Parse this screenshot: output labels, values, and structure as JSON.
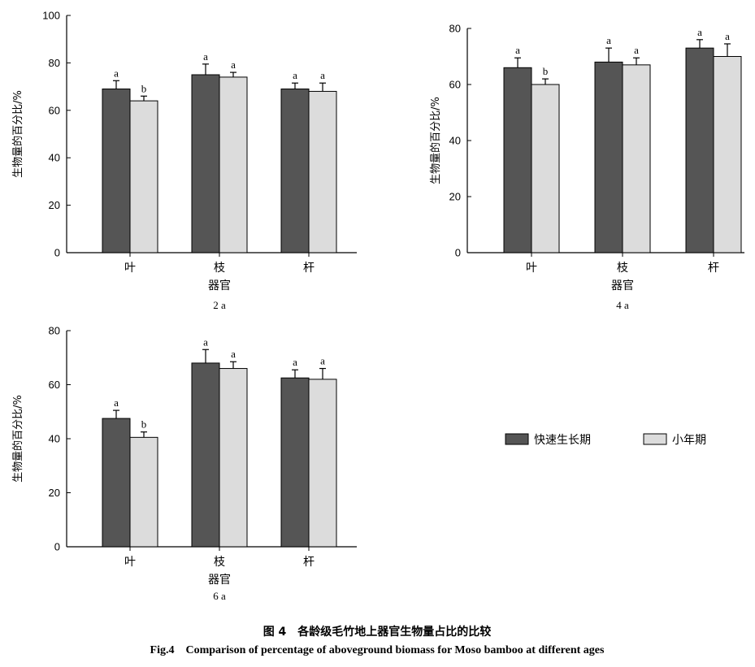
{
  "chart_data": [
    {
      "type": "bar",
      "panel_label": "2 a",
      "ylabel": "生物量的百分比/%",
      "xlabel": "器官",
      "categories": [
        "叶",
        "枝",
        "杆"
      ],
      "ylim": [
        0,
        100
      ],
      "yticks": [
        0,
        20,
        40,
        60,
        80,
        100
      ],
      "series": [
        {
          "values": [
            69,
            75,
            69
          ],
          "errors": [
            3.5,
            4.5,
            2.5
          ],
          "letters": [
            "a",
            "a",
            "a"
          ]
        },
        {
          "values": [
            64,
            74,
            68
          ],
          "errors": [
            2,
            2,
            3.5
          ],
          "letters": [
            "b",
            "a",
            "a"
          ]
        }
      ]
    },
    {
      "type": "bar",
      "panel_label": "4 a",
      "ylabel": "生物量的百分比/%",
      "xlabel": "器官",
      "categories": [
        "叶",
        "枝",
        "杆"
      ],
      "ylim": [
        0,
        80
      ],
      "yticks": [
        0,
        20,
        40,
        60,
        80
      ],
      "series": [
        {
          "values": [
            66,
            68,
            73
          ],
          "errors": [
            3.5,
            5,
            3
          ],
          "letters": [
            "a",
            "a",
            "a"
          ]
        },
        {
          "values": [
            60,
            67,
            70
          ],
          "errors": [
            2,
            2.5,
            4.5
          ],
          "letters": [
            "b",
            "a",
            "a"
          ]
        }
      ]
    },
    {
      "type": "bar",
      "panel_label": "6 a",
      "ylabel": "生物量的百分比/%",
      "xlabel": "器官",
      "categories": [
        "叶",
        "枝",
        "杆"
      ],
      "ylim": [
        0,
        80
      ],
      "yticks": [
        0,
        20,
        40,
        60,
        80
      ],
      "series": [
        {
          "values": [
            47.5,
            68,
            62.5
          ],
          "errors": [
            3,
            5,
            3
          ],
          "letters": [
            "a",
            "a",
            "a"
          ]
        },
        {
          "values": [
            40.5,
            66,
            62
          ],
          "errors": [
            2,
            2.5,
            4
          ],
          "letters": [
            "b",
            "a",
            "a"
          ]
        }
      ]
    }
  ],
  "legend": {
    "items": [
      {
        "label": "快速生长期",
        "color": "#555555"
      },
      {
        "label": "小年期",
        "color": "#dcdcdc"
      }
    ]
  },
  "caption": {
    "cn": "图 4　各龄级毛竹地上器官生物量占比的比较",
    "en": "Fig.4　Comparison of percentage of aboveground biomass for Moso bamboo at different ages"
  }
}
